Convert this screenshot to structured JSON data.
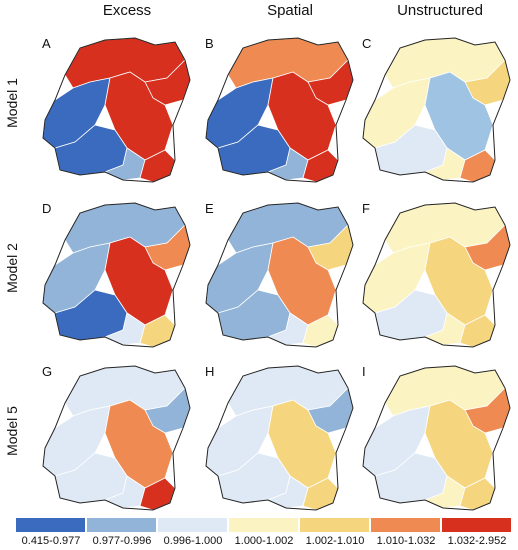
{
  "columns": [
    "Excess",
    "Spatial",
    "Unstructured"
  ],
  "rows": [
    "Model 1",
    "Model 2",
    "Model 5"
  ],
  "panels": [
    {
      "letter": "A",
      "scheme": [
        "#d7301f",
        "#d7301f",
        "#3b6bbf",
        "#d7301f",
        "#3b6bbf",
        "#91b4d8",
        "#d7301f"
      ]
    },
    {
      "letter": "B",
      "scheme": [
        "#ef8a52",
        "#d7301f",
        "#3b6bbf",
        "#d7301f",
        "#3b6bbf",
        "#91b4d8",
        "#d7301f"
      ]
    },
    {
      "letter": "C",
      "scheme": [
        "#fbf3c2",
        "#f5d67e",
        "#fbf3c2",
        "#9ec3e3",
        "#dfe9f5",
        "#fbf3c2",
        "#ef8a52"
      ]
    },
    {
      "letter": "D",
      "scheme": [
        "#91b4d8",
        "#ef8a52",
        "#91b4d8",
        "#d7301f",
        "#3b6bbf",
        "#dfe9f5",
        "#f5d67e"
      ]
    },
    {
      "letter": "E",
      "scheme": [
        "#91b4d8",
        "#f5d67e",
        "#91b4d8",
        "#ef8a52",
        "#91b4d8",
        "#dfe9f5",
        "#fbf3c2"
      ]
    },
    {
      "letter": "F",
      "scheme": [
        "#fbf3c2",
        "#ef8a52",
        "#fbf3c2",
        "#f5d67e",
        "#dfe9f5",
        "#fbf3c2",
        "#f5d67e"
      ]
    },
    {
      "letter": "G",
      "scheme": [
        "#dfe9f5",
        "#91b4d8",
        "#dfe9f5",
        "#ef8a52",
        "#dfe9f5",
        "#dfe9f5",
        "#d7301f"
      ]
    },
    {
      "letter": "H",
      "scheme": [
        "#dfe9f5",
        "#91b4d8",
        "#dfe9f5",
        "#f5d67e",
        "#dfe9f5",
        "#dfe9f5",
        "#f5d67e"
      ]
    },
    {
      "letter": "I",
      "scheme": [
        "#fbf3c2",
        "#ef8a52",
        "#dfe9f5",
        "#f5d67e",
        "#dfe9f5",
        "#fbf3c2",
        "#f5d67e"
      ]
    }
  ],
  "legend": [
    {
      "label": "0.415-0.977",
      "color": "#3b6bbf"
    },
    {
      "label": "0.977-0.996",
      "color": "#91b4d8"
    },
    {
      "label": "0.996-1.000",
      "color": "#dfe9f5"
    },
    {
      "label": "1.000-1.002",
      "color": "#fbf3c2"
    },
    {
      "label": "1.002-1.010",
      "color": "#f5d67e"
    },
    {
      "label": "1.010-1.032",
      "color": "#ef8a52"
    },
    {
      "label": "1.032-2.952",
      "color": "#d7301f"
    }
  ]
}
